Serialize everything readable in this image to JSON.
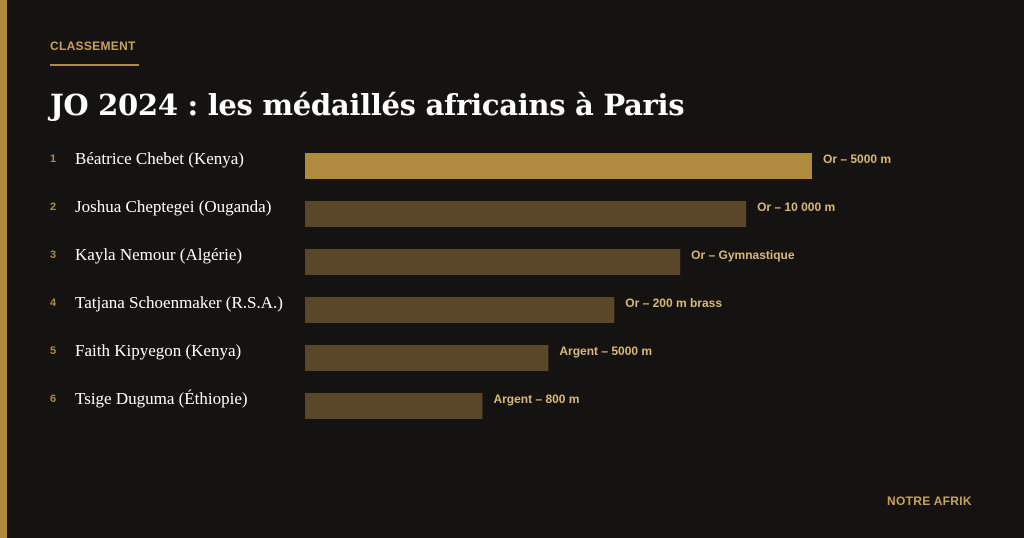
{
  "header": {
    "kicker": "CLASSEMENT",
    "title": "JO 2024 : les médaillés africains à Paris"
  },
  "footer": {
    "brand": "NOTRE AFRIK"
  },
  "colors": {
    "accent": "#b08a3e",
    "bar_highlight": "#b08a3e",
    "bar_default": "#5a4628",
    "label": "#d9b878",
    "rank": "#b08a3e",
    "name": "#ffffff",
    "background": "#151311"
  },
  "chart_data": {
    "type": "bar",
    "orientation": "horizontal",
    "title": "",
    "xlabel": "",
    "ylabel": "",
    "grid": false,
    "legend": "none",
    "highlight_index": 0,
    "categories": [
      "Béatrice Chebet (Kenya)",
      "Joshua Cheptegei (Ouganda)",
      "Kayla Nemour (Algérie)",
      "Tatjana Schoenmaker (R.S.A.)",
      "Faith Kipyegon (Kenya)",
      "Tsige Duguma (Éthiopie)"
    ],
    "ranks": [
      "1",
      "2",
      "3",
      "4",
      "5",
      "6"
    ],
    "values": [
      100,
      87,
      74,
      61,
      48,
      35
    ],
    "xlim": [
      0,
      100
    ],
    "data_labels": [
      "Or – 5000 m",
      "Or – 10 000 m",
      "Or – Gymnastique",
      "Or – 200 m brass",
      "Argent – 5000 m",
      "Argent – 800 m"
    ]
  }
}
